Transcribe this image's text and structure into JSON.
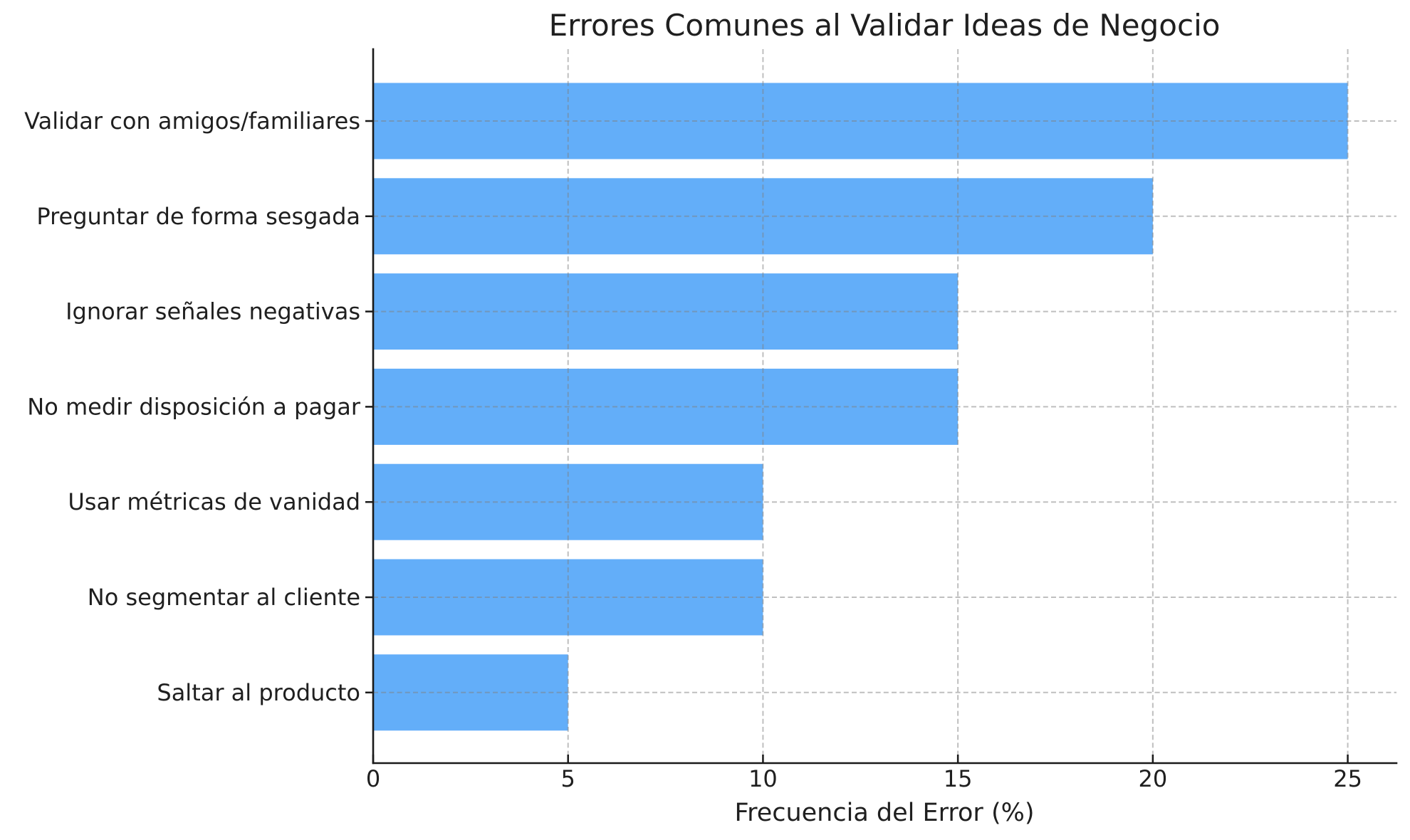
{
  "chart_data": {
    "type": "bar",
    "orientation": "horizontal",
    "title": "Errores Comunes al Validar Ideas de Negocio",
    "xlabel": "Frecuencia del Error (%)",
    "ylabel": "",
    "categories": [
      "Validar con amigos/familiares",
      "Preguntar de forma sesgada",
      "Ignorar señales negativas",
      "No medir disposición a pagar",
      "Usar métricas de vanidad",
      "No segmentar al cliente",
      "Saltar al producto"
    ],
    "values": [
      25,
      20,
      15,
      15,
      10,
      10,
      5
    ],
    "x_ticks": [
      0,
      5,
      10,
      15,
      20,
      25
    ],
    "xlim": [
      0,
      26.25
    ],
    "grid": "dashed",
    "legend": "none",
    "bar_color": "#63aef9",
    "grid_color": "#808080",
    "axis_color": "#1a1a1a",
    "text_color": "#1f1f1f"
  }
}
